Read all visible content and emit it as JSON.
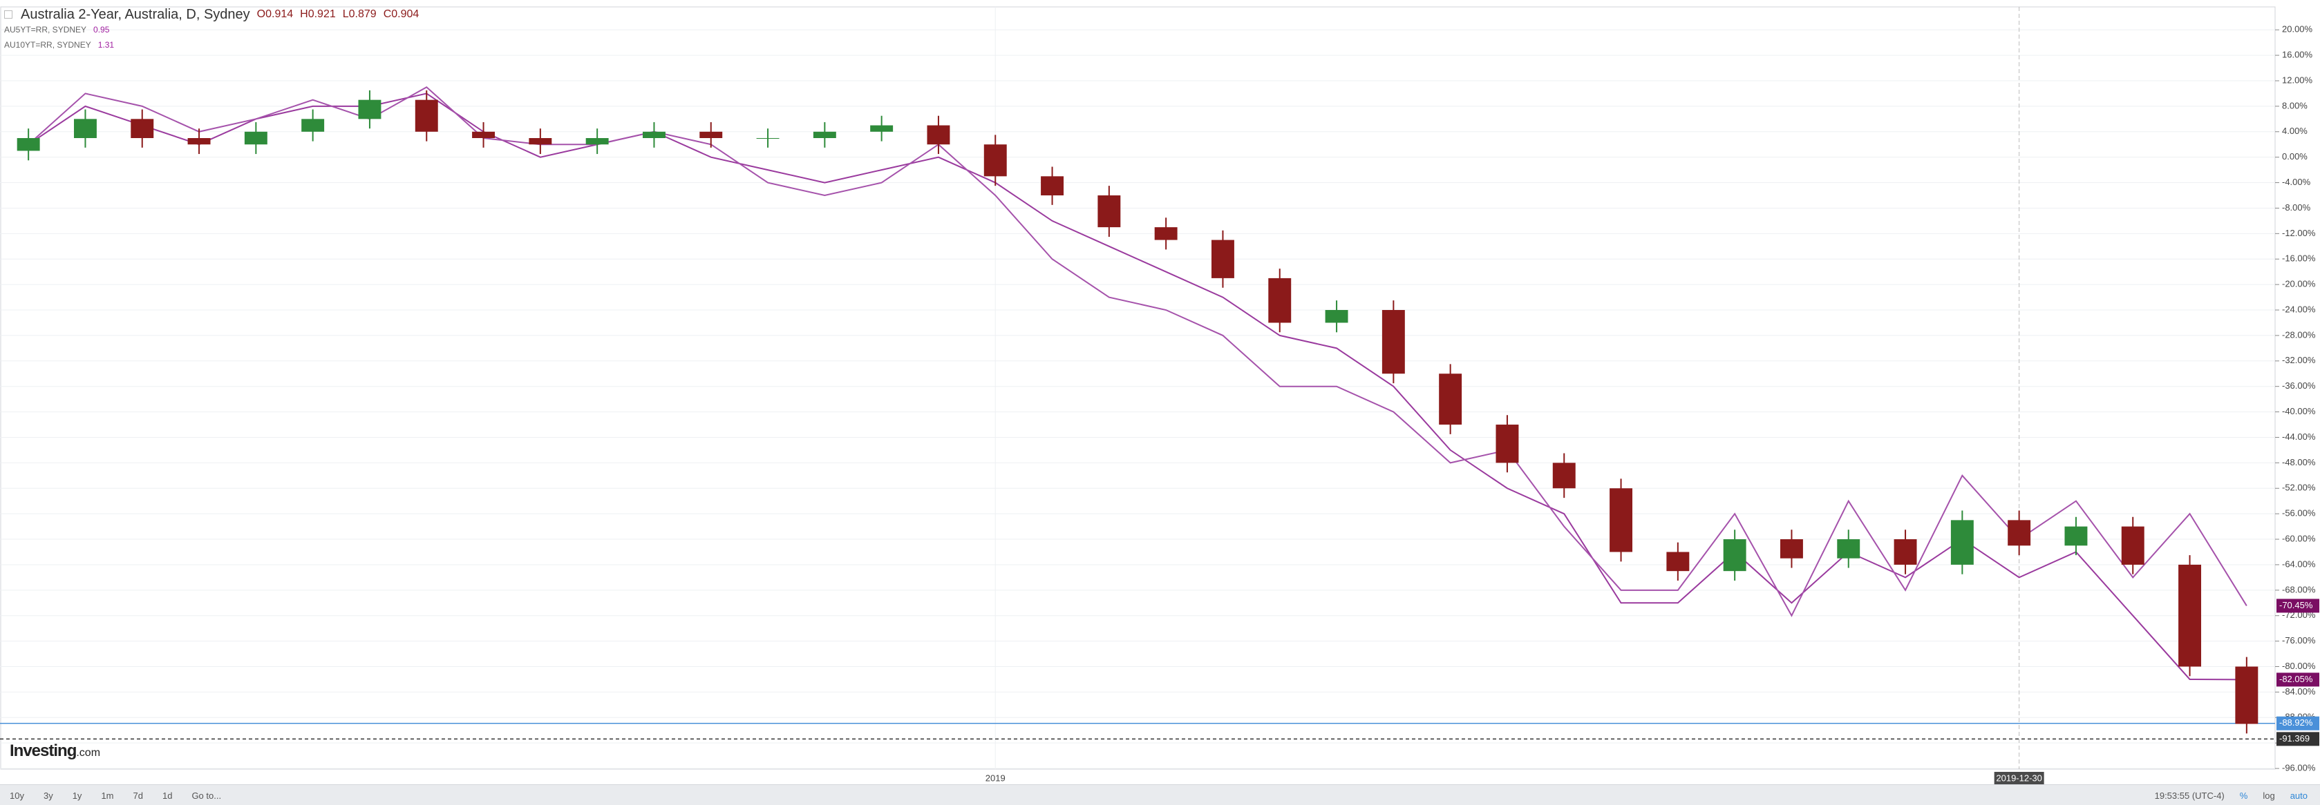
{
  "header": {
    "title": "Australia 2-Year, Australia, D, Sydney",
    "open": "O0.914",
    "high": "H0.921",
    "low": "L0.879",
    "close": "C0.904",
    "legend": [
      {
        "name": "AU5YT=RR, SYDNEY",
        "value": "0.95"
      },
      {
        "name": "AU10YT=RR, SYDNEY",
        "value": "1.31"
      }
    ]
  },
  "logo": {
    "main": "Investing",
    "suffix": ".com"
  },
  "toolbar": {
    "ranges": [
      "10y",
      "3y",
      "1y",
      "1m",
      "7d",
      "1d",
      "Go to..."
    ],
    "time": "19:53:55 (UTC-4)",
    "percent": "%",
    "log": "log",
    "auto": "auto"
  },
  "chart_data": {
    "type": "candlestick",
    "categories": [
      null,
      null,
      null,
      null,
      null,
      null,
      null,
      null,
      null,
      null,
      null,
      null,
      null,
      null,
      null,
      null,
      null,
      "2019",
      null,
      null,
      null,
      null,
      null,
      null,
      null,
      null,
      null,
      null,
      null,
      null,
      null,
      null,
      null,
      null,
      null,
      "2019-12-30",
      null,
      null,
      null,
      null
    ],
    "open": [
      1,
      3,
      6,
      3,
      2,
      4,
      6,
      9,
      4,
      3,
      2,
      3,
      4,
      3,
      3,
      4,
      5,
      2,
      -3,
      -6,
      -11,
      -13,
      -19,
      -26,
      -24,
      -34,
      -42,
      -48,
      -52,
      -62,
      -65,
      -60,
      -63,
      -60,
      -64,
      -57,
      -61,
      -58,
      -64,
      -80
    ],
    "high": [
      4.5,
      7.5,
      7.5,
      4.5,
      5.5,
      7.5,
      10.5,
      10.5,
      5.5,
      4.5,
      4.5,
      5.5,
      5.5,
      4.5,
      5.5,
      6.5,
      6.5,
      3.5,
      -1.5,
      -4.5,
      -9.5,
      -11.5,
      -17.5,
      -22.5,
      -22.5,
      -32.5,
      -40.5,
      -46.5,
      -50.5,
      -60.5,
      -58.5,
      -58.5,
      -58.5,
      -58.5,
      -55.5,
      -55.5,
      -56.5,
      -56.5,
      -62.5,
      -78.5
    ],
    "low": [
      -0.5,
      1.5,
      1.5,
      0.5,
      0.5,
      2.5,
      4.5,
      2.5,
      1.5,
      0.5,
      0.5,
      1.5,
      1.5,
      1.5,
      1.5,
      2.5,
      0.5,
      -4.5,
      -7.5,
      -12.5,
      -14.5,
      -20.5,
      -27.5,
      -27.5,
      -35.5,
      -43.5,
      -49.5,
      -53.5,
      -63.5,
      -66.5,
      -66.5,
      -64.5,
      -64.5,
      -65.5,
      -65.5,
      -62.5,
      -62.5,
      -65.5,
      -81.5,
      -90.5
    ],
    "close": [
      3,
      6,
      3,
      2,
      4,
      6,
      9,
      4,
      3,
      2,
      3,
      4,
      3,
      3,
      4,
      5,
      2,
      -3,
      -6,
      -11,
      -13,
      -19,
      -26,
      -24,
      -34,
      -42,
      -48,
      -52,
      -62,
      -65,
      -60,
      -63,
      -60,
      -64,
      -57,
      -61,
      -58,
      -64,
      -80,
      -89
    ],
    "up_color": "#2e8b3a",
    "down_color": "#8b1a1a",
    "series": [
      {
        "name": "AU5YT=RR, SYDNEY",
        "color": "#9a3a9e",
        "label_color": "#7a0e63",
        "last_label": "-82.05%",
        "values": [
          2,
          8,
          5,
          2,
          6,
          8,
          8,
          10,
          4,
          0,
          2,
          4,
          0,
          -2,
          -4,
          -2,
          0,
          -4,
          -10,
          -14,
          -18,
          -22,
          -28,
          -30,
          -36,
          -46,
          -52,
          -56,
          -70,
          -70,
          -62,
          -70,
          -62,
          -66,
          -60,
          -66,
          -62,
          -72,
          -82,
          -82.05
        ]
      },
      {
        "name": "AU10YT=RR, SYDNEY",
        "color": "#a552ab",
        "label_color": "#7a0e63",
        "last_label": "-70.45%",
        "values": [
          2,
          10,
          8,
          4,
          6,
          9,
          6,
          11,
          3,
          2,
          2,
          4,
          2,
          -4,
          -6,
          -4,
          2,
          -6,
          -16,
          -22,
          -24,
          -28,
          -36,
          -36,
          -40,
          -48,
          -46,
          -58,
          -68,
          -68,
          -56,
          -72,
          -54,
          -68,
          -50,
          -60,
          -54,
          -66,
          -56,
          -70.45
        ]
      }
    ],
    "price_lines": [
      {
        "value": -88.92,
        "label": "-88.92%",
        "color": "#4a90d9"
      },
      {
        "value": -91.369,
        "label": "-91.369",
        "color": "#333333"
      }
    ],
    "ylim": [
      -96.1,
      23.6
    ],
    "yticks": [
      {
        "value": 20,
        "label": "20.00%"
      },
      {
        "value": 16,
        "label": "16.00%"
      },
      {
        "value": 12,
        "label": "12.00%"
      },
      {
        "value": 8,
        "label": "8.00%"
      },
      {
        "value": 4,
        "label": "4.00%"
      },
      {
        "value": 0,
        "label": "0.00%"
      },
      {
        "value": -4,
        "label": "-4.00%"
      },
      {
        "value": -8,
        "label": "-8.00%"
      },
      {
        "value": -12,
        "label": "-12.00%"
      },
      {
        "value": -16,
        "label": "-16.00%"
      },
      {
        "value": -20,
        "label": "-20.00%"
      },
      {
        "value": -24,
        "label": "-24.00%"
      },
      {
        "value": -28,
        "label": "-28.00%"
      },
      {
        "value": -32,
        "label": "-32.00%"
      },
      {
        "value": -36,
        "label": "-36.00%"
      },
      {
        "value": -40,
        "label": "-40.00%"
      },
      {
        "value": -44,
        "label": "-44.00%"
      },
      {
        "value": -48,
        "label": "-48.00%"
      },
      {
        "value": -52,
        "label": "-52.00%"
      },
      {
        "value": -56,
        "label": "-56.00%"
      },
      {
        "value": -60,
        "label": "-60.00%"
      },
      {
        "value": -64,
        "label": "-64.00%"
      },
      {
        "value": -68,
        "label": "-68.00%"
      },
      {
        "value": -72,
        "label": "-72.00%"
      },
      {
        "value": -76,
        "label": "-76.00%"
      },
      {
        "value": -80,
        "label": "-80.00%"
      },
      {
        "value": -84,
        "label": "-84.00%"
      },
      {
        "value": -88,
        "label": "-88.00%"
      },
      {
        "value": -92,
        "label": "-92.00%"
      },
      {
        "value": -96,
        "label": "-96.00%"
      }
    ],
    "grid": true
  }
}
